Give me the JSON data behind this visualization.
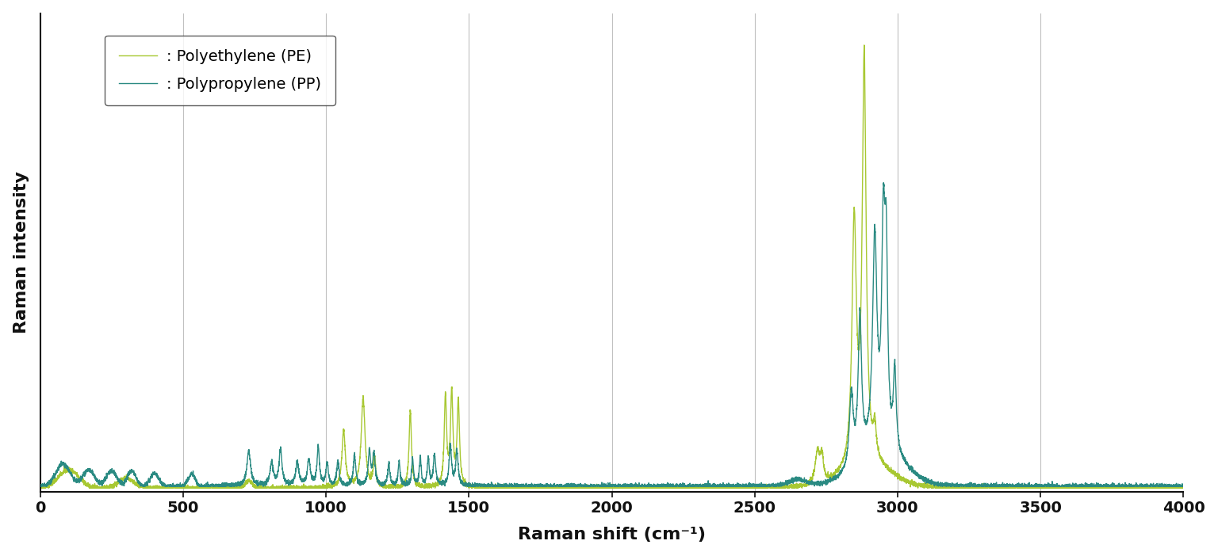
{
  "xlabel": "Raman shift (cm⁻¹)",
  "ylabel": "Raman intensity",
  "xlim": [
    0,
    4000
  ],
  "pe_color": "#a8c832",
  "pp_color": "#2a8a82",
  "legend_pe": ": Polyethylene (PE)",
  "legend_pp": ": Polypropylene (PP)",
  "background_color": "#ffffff",
  "grid_color": "#c0c0c0",
  "grid_positions": [
    500,
    1000,
    1500,
    2000,
    2500,
    3000,
    3500
  ],
  "tick_positions": [
    0,
    500,
    1000,
    1500,
    2000,
    2500,
    3000,
    3500,
    4000
  ],
  "linewidth": 1.0
}
